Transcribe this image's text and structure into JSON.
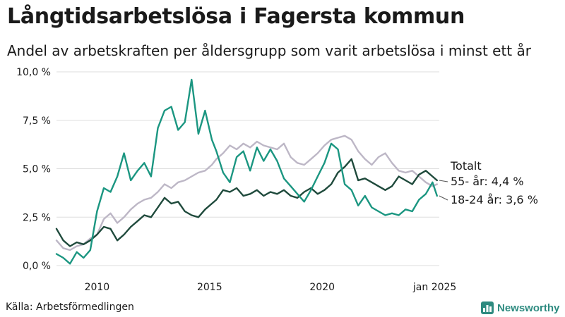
{
  "title": "Långtidsarbetslösa i Fagersta kommun",
  "subtitle": "Andel av arbetskraften per åldersgrupp som varit arbetslösa i minst ett år",
  "source": "Källa: Arbetsförmedlingen",
  "brand": "Newsworthy",
  "colors": {
    "total": "#bdb7c6",
    "age55": "#1f4a3c",
    "age1824": "#1b9681",
    "grid": "#dddddd",
    "brand": "#2e8b80"
  },
  "chart_data": {
    "type": "line",
    "xlabel": "",
    "ylabel": "",
    "ylim": [
      0,
      10
    ],
    "xlim": [
      2008.2,
      2025.2
    ],
    "grid": true,
    "y_ticks": [
      {
        "value": 0,
        "label": "0,0 %"
      },
      {
        "value": 2.5,
        "label": "2,5 %"
      },
      {
        "value": 5,
        "label": "5,0 %"
      },
      {
        "value": 7.5,
        "label": "7,5 %"
      },
      {
        "value": 10,
        "label": "10,0 %"
      }
    ],
    "x_ticks": [
      {
        "value": 2010,
        "label": "2010"
      },
      {
        "value": 2015,
        "label": "2015"
      },
      {
        "value": 2020,
        "label": "2020"
      },
      {
        "value": 2025,
        "label": "jan 2025"
      }
    ],
    "series": [
      {
        "name": "Totalt",
        "label": "Totalt",
        "color": "#bdb7c6",
        "x": [
          2008.2,
          2008.5,
          2008.8,
          2009.1,
          2009.4,
          2009.7,
          2010.0,
          2010.3,
          2010.6,
          2010.9,
          2011.2,
          2011.5,
          2011.8,
          2012.1,
          2012.4,
          2012.7,
          2013.0,
          2013.3,
          2013.6,
          2013.9,
          2014.2,
          2014.5,
          2014.8,
          2015.1,
          2015.3,
          2015.6,
          2015.9,
          2016.2,
          2016.5,
          2016.8,
          2017.1,
          2017.4,
          2017.7,
          2018.0,
          2018.3,
          2018.6,
          2018.9,
          2019.2,
          2019.5,
          2019.8,
          2020.1,
          2020.4,
          2020.7,
          2021.0,
          2021.3,
          2021.6,
          2021.9,
          2022.2,
          2022.5,
          2022.8,
          2023.1,
          2023.4,
          2023.7,
          2024.0,
          2024.3,
          2024.6,
          2024.9,
          2025.1
        ],
        "values": [
          1.3,
          0.9,
          0.8,
          1.0,
          1.1,
          1.4,
          1.6,
          2.4,
          2.7,
          2.2,
          2.5,
          2.9,
          3.2,
          3.4,
          3.5,
          3.8,
          4.2,
          4.0,
          4.3,
          4.4,
          4.6,
          4.8,
          4.9,
          5.2,
          5.5,
          5.8,
          6.2,
          6.0,
          6.3,
          6.1,
          6.4,
          6.2,
          6.1,
          6.0,
          6.3,
          5.6,
          5.3,
          5.2,
          5.5,
          5.8,
          6.2,
          6.5,
          6.6,
          6.7,
          6.5,
          5.9,
          5.5,
          5.2,
          5.6,
          5.8,
          5.3,
          4.9,
          4.8,
          4.9,
          4.6,
          4.3,
          4.1,
          4.2
        ]
      },
      {
        "name": "55- år",
        "label": "55- år: 4,4 %",
        "color": "#1f4a3c",
        "x": [
          2008.2,
          2008.5,
          2008.8,
          2009.1,
          2009.4,
          2009.7,
          2010.0,
          2010.3,
          2010.6,
          2010.9,
          2011.2,
          2011.5,
          2011.8,
          2012.1,
          2012.4,
          2012.7,
          2013.0,
          2013.3,
          2013.6,
          2013.9,
          2014.2,
          2014.5,
          2014.8,
          2015.1,
          2015.3,
          2015.6,
          2015.9,
          2016.2,
          2016.5,
          2016.8,
          2017.1,
          2017.4,
          2017.7,
          2018.0,
          2018.3,
          2018.6,
          2018.9,
          2019.2,
          2019.5,
          2019.8,
          2020.1,
          2020.4,
          2020.7,
          2021.0,
          2021.3,
          2021.6,
          2021.9,
          2022.2,
          2022.5,
          2022.8,
          2023.1,
          2023.4,
          2023.7,
          2024.0,
          2024.3,
          2024.6,
          2024.9,
          2025.1
        ],
        "values": [
          1.9,
          1.3,
          1.0,
          1.2,
          1.1,
          1.3,
          1.6,
          2.0,
          1.9,
          1.3,
          1.6,
          2.0,
          2.3,
          2.6,
          2.5,
          3.0,
          3.5,
          3.2,
          3.3,
          2.8,
          2.6,
          2.5,
          2.9,
          3.2,
          3.4,
          3.9,
          3.8,
          4.0,
          3.6,
          3.7,
          3.9,
          3.6,
          3.8,
          3.7,
          3.9,
          3.6,
          3.5,
          3.8,
          4.0,
          3.7,
          3.9,
          4.2,
          4.8,
          5.1,
          5.5,
          4.4,
          4.5,
          4.3,
          4.1,
          3.9,
          4.1,
          4.6,
          4.4,
          4.2,
          4.7,
          4.9,
          4.6,
          4.4
        ]
      },
      {
        "name": "18-24 år",
        "label": "18-24 år: 3,6 %",
        "color": "#1b9681",
        "x": [
          2008.2,
          2008.5,
          2008.8,
          2009.1,
          2009.4,
          2009.7,
          2010.0,
          2010.3,
          2010.6,
          2010.9,
          2011.2,
          2011.5,
          2011.8,
          2012.1,
          2012.4,
          2012.7,
          2013.0,
          2013.3,
          2013.6,
          2013.9,
          2014.2,
          2014.5,
          2014.8,
          2015.1,
          2015.3,
          2015.6,
          2015.9,
          2016.2,
          2016.5,
          2016.8,
          2017.1,
          2017.4,
          2017.7,
          2018.0,
          2018.3,
          2018.6,
          2018.9,
          2019.2,
          2019.5,
          2019.8,
          2020.1,
          2020.4,
          2020.7,
          2021.0,
          2021.3,
          2021.6,
          2021.9,
          2022.2,
          2022.5,
          2022.8,
          2023.1,
          2023.4,
          2023.7,
          2024.0,
          2024.3,
          2024.6,
          2024.9,
          2025.1
        ],
        "values": [
          0.6,
          0.4,
          0.1,
          0.7,
          0.4,
          0.8,
          2.8,
          4.0,
          3.8,
          4.6,
          5.8,
          4.4,
          4.9,
          5.3,
          4.6,
          7.1,
          8.0,
          8.2,
          7.0,
          7.4,
          9.6,
          6.8,
          8.0,
          6.5,
          5.9,
          4.8,
          4.3,
          5.6,
          5.9,
          4.9,
          6.1,
          5.4,
          6.0,
          5.4,
          4.5,
          4.1,
          3.7,
          3.3,
          3.9,
          4.6,
          5.3,
          6.3,
          6.0,
          4.2,
          3.9,
          3.1,
          3.6,
          3.0,
          2.8,
          2.6,
          2.7,
          2.6,
          2.9,
          2.8,
          3.4,
          3.7,
          4.3,
          3.6
        ]
      }
    ]
  }
}
